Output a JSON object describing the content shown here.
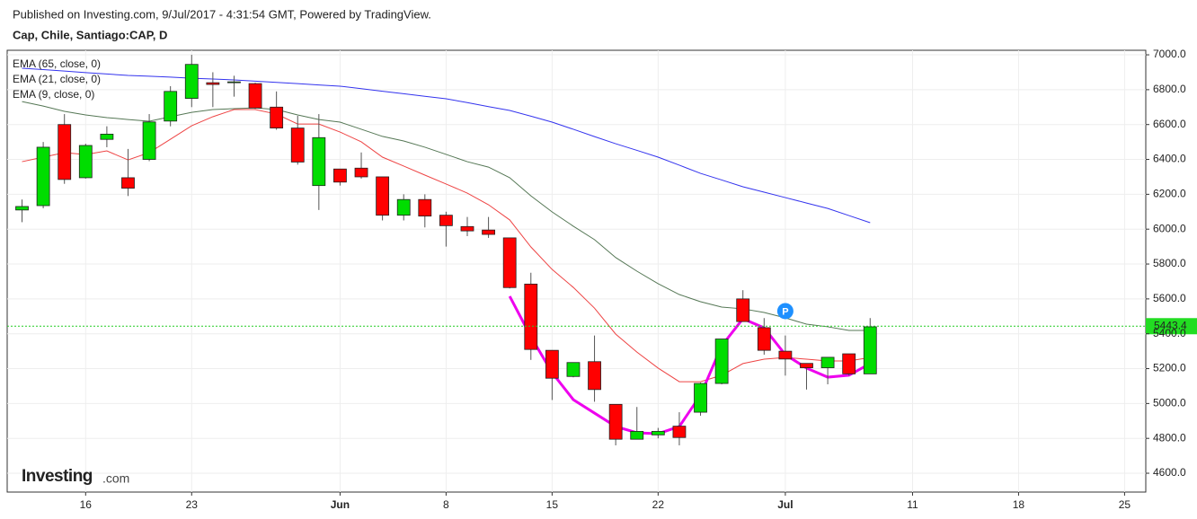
{
  "header": {
    "line1": "Published on Investing.com, 9/Jul/2017 - 4:31:54 GMT, Powered by TradingView.",
    "line2": "Cap, Chile, Santiago:CAP, D"
  },
  "logo": {
    "main": "Investing",
    "suffix": ".com"
  },
  "chart_data": {
    "type": "candlestick",
    "xlim": [
      -0.7,
      53
    ],
    "ylim": [
      4492,
      7026
    ],
    "grid": true,
    "up_color": "#00dd00",
    "down_color": "#ff0000",
    "xticks": [
      {
        "value": 3,
        "label": "16"
      },
      {
        "value": 8,
        "label": "23"
      },
      {
        "value": 15,
        "label": "Jun"
      },
      {
        "value": 20,
        "label": "8"
      },
      {
        "value": 25,
        "label": "15"
      },
      {
        "value": 30,
        "label": "22"
      },
      {
        "value": 36,
        "label": "Jul"
      },
      {
        "value": 42,
        "label": "11"
      },
      {
        "value": 47,
        "label": "18"
      },
      {
        "value": 52,
        "label": "25"
      }
    ],
    "yticks": [
      {
        "value": 4600,
        "label": "4600.0"
      },
      {
        "value": 4800,
        "label": "4800.0"
      },
      {
        "value": 5000,
        "label": "5000.0"
      },
      {
        "value": 5200,
        "label": "5200.0"
      },
      {
        "value": 5400,
        "label": "5400.0"
      },
      {
        "value": 5600,
        "label": "5600.0"
      },
      {
        "value": 5800,
        "label": "5800.0"
      },
      {
        "value": 6000,
        "label": "6000.0"
      },
      {
        "value": 6200,
        "label": "6200.0"
      },
      {
        "value": 6400,
        "label": "6400.0"
      },
      {
        "value": 6600,
        "label": "6600.0"
      },
      {
        "value": 6800,
        "label": "6800.0"
      },
      {
        "value": 7000,
        "label": "7000.0"
      }
    ],
    "open": [
      6110,
      6135,
      6600,
      6295,
      6515,
      6295,
      6400,
      6620,
      6750,
      6840,
      6840,
      6835,
      6700,
      6580,
      6250,
      6345,
      6350,
      6300,
      6080,
      6170,
      6080,
      6015,
      5995,
      5950,
      5685,
      5305,
      5155,
      5240,
      4995,
      4795,
      4820,
      4870,
      4950,
      5115,
      5600,
      5435,
      5300,
      5230,
      5205,
      5285,
      5170
    ],
    "high": [
      6170,
      6500,
      6660,
      6490,
      6590,
      6460,
      6660,
      6820,
      7000,
      6900,
      6880,
      6840,
      6790,
      6650,
      6660,
      6345,
      6440,
      6300,
      6200,
      6200,
      6100,
      6070,
      6070,
      5950,
      5750,
      5305,
      5235,
      5390,
      4995,
      4980,
      4860,
      4950,
      5120,
      5370,
      5650,
      5490,
      5390,
      5230,
      5265,
      5285,
      5490
    ],
    "low": [
      6040,
      6120,
      6260,
      6290,
      6470,
      6190,
      6390,
      6590,
      6700,
      6700,
      6760,
      6690,
      6570,
      6370,
      6110,
      6250,
      6290,
      6050,
      6050,
      6010,
      5900,
      5960,
      5950,
      5660,
      5250,
      5020,
      5150,
      5010,
      4760,
      4795,
      4800,
      4760,
      4930,
      5110,
      5470,
      5280,
      5160,
      5080,
      5110,
      5160,
      5170
    ],
    "close": [
      6130,
      6470,
      6285,
      6480,
      6545,
      6235,
      6615,
      6790,
      6945,
      6830,
      6845,
      6695,
      6580,
      6385,
      6525,
      6270,
      6300,
      6080,
      6170,
      6075,
      6020,
      5990,
      5970,
      5665,
      5310,
      5145,
      5235,
      5080,
      4795,
      4840,
      4840,
      4805,
      5115,
      5370,
      5470,
      5305,
      5255,
      5205,
      5265,
      5170,
      5440
    ],
    "series": [
      {
        "name": "EMA (65, close, 0)",
        "color": "#3333ee",
        "values": [
          6923,
          6915,
          6907,
          6898,
          6890,
          6882,
          6877,
          6872,
          6866,
          6861,
          6856,
          6849,
          6842,
          6835,
          6827,
          6820,
          6806,
          6791,
          6777,
          6762,
          6748,
          6726,
          6703,
          6681,
          6648,
          6614,
          6573,
          6531,
          6490,
          6452,
          6413,
          6367,
          6320,
          6282,
          6243,
          6212,
          6181,
          6150,
          6119,
          6078,
          6037
        ]
      },
      {
        "name": "EMA (21, close, 0)",
        "color": "#557755",
        "values": [
          6732,
          6706,
          6676,
          6655,
          6640,
          6629,
          6619,
          6645,
          6670,
          6686,
          6691,
          6696,
          6686,
          6655,
          6629,
          6614,
          6573,
          6532,
          6506,
          6470,
          6429,
          6387,
          6356,
          6295,
          6191,
          6099,
          6017,
          5940,
          5837,
          5759,
          5687,
          5625,
          5584,
          5553,
          5543,
          5522,
          5491,
          5455,
          5440,
          5419,
          5419
        ]
      },
      {
        "name": "EMA (9, close, 0)",
        "color": "#ee4444",
        "values": [
          6387,
          6413,
          6439,
          6428,
          6449,
          6397,
          6439,
          6516,
          6593,
          6645,
          6686,
          6686,
          6660,
          6603,
          6603,
          6557,
          6501,
          6413,
          6362,
          6310,
          6259,
          6207,
          6140,
          6053,
          5898,
          5769,
          5666,
          5547,
          5398,
          5295,
          5203,
          5125,
          5125,
          5162,
          5229,
          5254,
          5264,
          5254,
          5244,
          5244,
          5264
        ]
      },
      {
        "color": "#ee00ee",
        "values": [
          null,
          null,
          null,
          null,
          null,
          null,
          null,
          null,
          null,
          null,
          null,
          null,
          null,
          null,
          null,
          null,
          null,
          null,
          null,
          null,
          null,
          null,
          null,
          5615,
          5383,
          5177,
          5022,
          4945,
          4868,
          4832,
          4827,
          4868,
          5048,
          5331,
          5486,
          5434,
          5280,
          5203,
          5151,
          5162,
          5229
        ]
      }
    ],
    "last_price": 5443.4,
    "marker": {
      "x": 36,
      "y": 5530,
      "label": "P"
    }
  }
}
